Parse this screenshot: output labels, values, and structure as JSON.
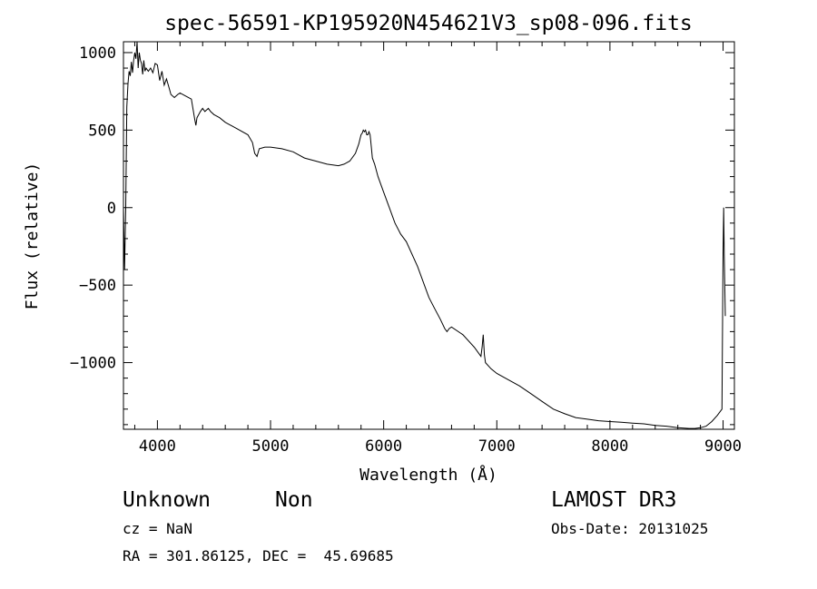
{
  "chart_data": {
    "type": "line",
    "title": "spec-56591-KP195920N454621V3_sp08-096.fits",
    "xlabel": "Wavelength (Å)",
    "ylabel": "Flux (relative)",
    "xlim": [
      3700,
      9100
    ],
    "ylim": [
      -1430,
      1070
    ],
    "x_ticks": [
      4000,
      5000,
      6000,
      7000,
      8000,
      9000
    ],
    "y_ticks": [
      1000,
      500,
      0,
      -500,
      -1000
    ],
    "grid": false,
    "series": [
      {
        "x": [
          3700,
          3710,
          3720,
          3730,
          3740,
          3750,
          3760,
          3770,
          3780,
          3790,
          3800,
          3810,
          3820,
          3830,
          3840,
          3850,
          3860,
          3870,
          3880,
          3890,
          3900,
          3920,
          3940,
          3960,
          3980,
          4000,
          4020,
          4040,
          4060,
          4080,
          4100,
          4120,
          4150,
          4180,
          4200,
          4250,
          4300,
          4330,
          4340,
          4350,
          4380,
          4400,
          4420,
          4450,
          4470,
          4500,
          4550,
          4600,
          4700,
          4800,
          4840,
          4860,
          4880,
          4900,
          4950,
          5000,
          5100,
          5200,
          5300,
          5400,
          5500,
          5600,
          5650,
          5700,
          5750,
          5780,
          5800,
          5810,
          5820,
          5830,
          5840,
          5850,
          5860,
          5870,
          5880,
          5890,
          5900,
          5920,
          5950,
          6000,
          6050,
          6100,
          6150,
          6200,
          6300,
          6400,
          6450,
          6500,
          6540,
          6560,
          6580,
          6600,
          6700,
          6800,
          6860,
          6870,
          6880,
          6890,
          6900,
          6950,
          7000,
          7100,
          7200,
          7300,
          7400,
          7500,
          7600,
          7700,
          7800,
          7900,
          8000,
          8100,
          8200,
          8300,
          8400,
          8500,
          8600,
          8700,
          8750,
          8800,
          8850,
          8900,
          8950,
          8990,
          9000,
          9005,
          9010,
          9020
        ],
        "y": [
          0,
          -400,
          0,
          650,
          800,
          880,
          850,
          940,
          870,
          950,
          1000,
          960,
          1070,
          900,
          1000,
          950,
          930,
          860,
          950,
          880,
          900,
          880,
          900,
          870,
          930,
          920,
          820,
          880,
          790,
          830,
          780,
          730,
          710,
          730,
          740,
          720,
          700,
          570,
          530,
          580,
          620,
          640,
          620,
          640,
          620,
          600,
          580,
          550,
          510,
          470,
          420,
          350,
          330,
          380,
          390,
          390,
          380,
          360,
          320,
          300,
          280,
          270,
          280,
          300,
          350,
          410,
          470,
          480,
          500,
          490,
          500,
          470,
          470,
          490,
          470,
          400,
          320,
          280,
          200,
          100,
          0,
          -100,
          -170,
          -220,
          -380,
          -580,
          -650,
          -720,
          -780,
          -800,
          -780,
          -770,
          -820,
          -900,
          -960,
          -900,
          -820,
          -950,
          -1000,
          -1040,
          -1070,
          -1110,
          -1150,
          -1200,
          -1250,
          -1300,
          -1330,
          -1355,
          -1365,
          -1375,
          -1380,
          -1385,
          -1390,
          -1395,
          -1405,
          -1410,
          -1420,
          -1425,
          -1425,
          -1420,
          -1410,
          -1380,
          -1340,
          -1300,
          -300,
          0,
          -300,
          -700
        ]
      }
    ]
  },
  "info": {
    "class_label": "Unknown",
    "subclass_label": "Non",
    "survey": "LAMOST DR3",
    "redshift": "cz = NaN",
    "obs_date": "Obs-Date: 20131025",
    "coords": "RA = 301.86125, DEC =  45.69685"
  }
}
